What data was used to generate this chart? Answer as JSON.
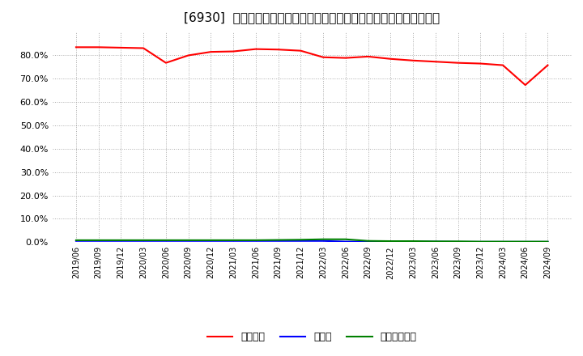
{
  "title": "[6930]  自己資本、のれん、繰延税金資産の総資産に対する比率の推移",
  "x_labels": [
    "2019/06",
    "2019/09",
    "2019/12",
    "2020/03",
    "2020/06",
    "2020/09",
    "2020/12",
    "2021/03",
    "2021/06",
    "2021/09",
    "2021/12",
    "2022/03",
    "2022/06",
    "2022/09",
    "2022/12",
    "2023/03",
    "2023/06",
    "2023/09",
    "2023/12",
    "2024/03",
    "2024/06",
    "2024/09"
  ],
  "jiko_shihon": [
    83.5,
    83.5,
    83.3,
    83.1,
    76.8,
    80.0,
    81.5,
    81.7,
    82.7,
    82.5,
    82.0,
    79.2,
    78.9,
    79.5,
    78.5,
    77.8,
    77.3,
    76.8,
    76.5,
    75.8,
    67.3,
    75.8
  ],
  "noren": [
    0.5,
    0.5,
    0.5,
    0.5,
    0.5,
    0.5,
    0.5,
    0.5,
    0.5,
    0.5,
    0.5,
    0.5,
    0.2,
    0.2,
    0.2,
    0.2,
    0.2,
    0.1,
    0.1,
    0.1,
    0.1,
    0.1
  ],
  "kurinobe_zeikin": [
    0.8,
    0.8,
    0.8,
    0.8,
    0.8,
    0.8,
    0.8,
    0.8,
    0.8,
    0.9,
    1.0,
    1.2,
    1.2,
    0.5,
    0.4,
    0.4,
    0.3,
    0.3,
    0.2,
    0.2,
    0.2,
    0.2
  ],
  "line_color_jiko": "#ff0000",
  "line_color_noren": "#0000ff",
  "line_color_kurinobe": "#008000",
  "bg_color": "#ffffff",
  "grid_color": "#aaaaaa",
  "ylim": [
    0.0,
    90.0
  ],
  "yticks": [
    0.0,
    10.0,
    20.0,
    30.0,
    40.0,
    50.0,
    60.0,
    70.0,
    80.0
  ],
  "legend_jiko": "自己資本",
  "legend_noren": "のれん",
  "legend_kurinobe": "繰延税金資産"
}
